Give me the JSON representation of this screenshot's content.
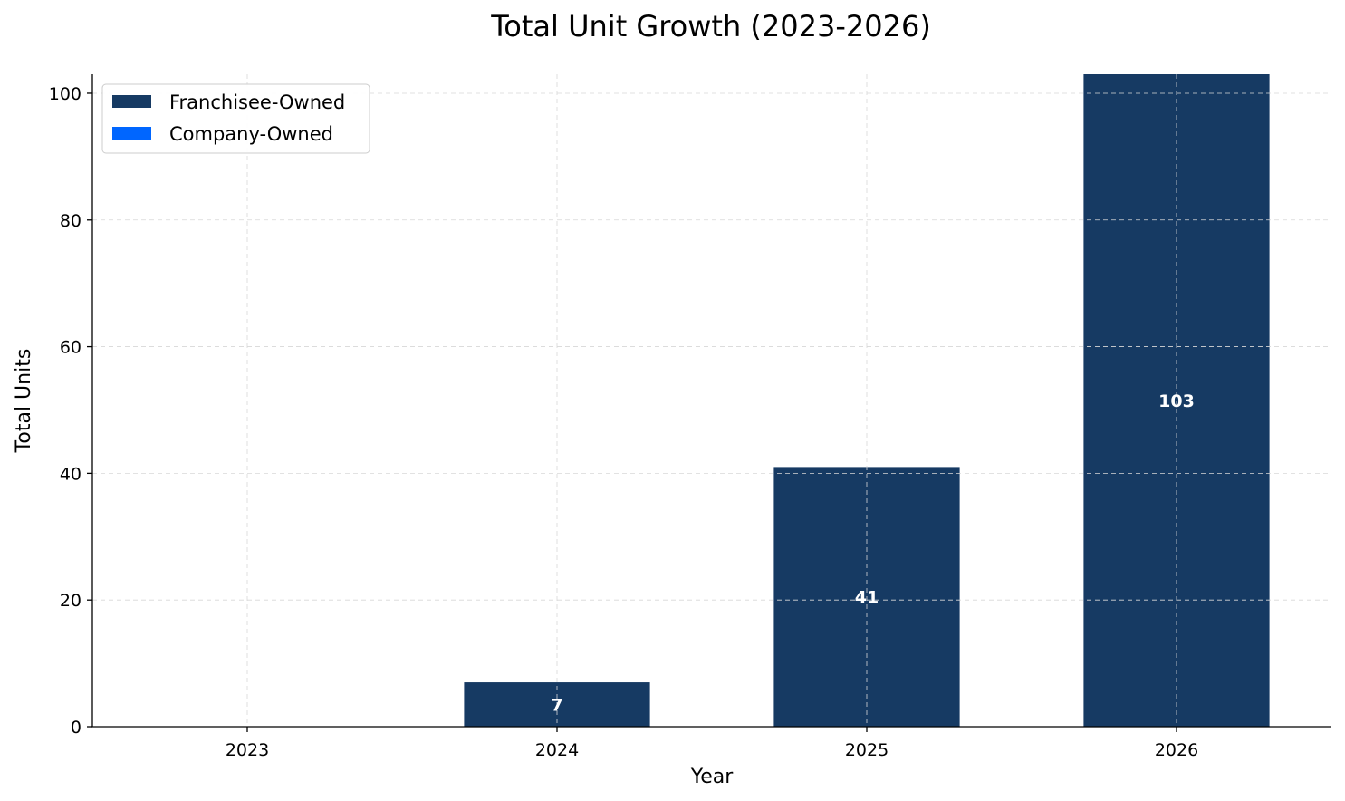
{
  "chart_data": {
    "type": "bar",
    "stacked": true,
    "title": "Total Unit Growth (2023-2026)",
    "xlabel": "Year",
    "ylabel": "Total Units",
    "categories": [
      "2023",
      "2024",
      "2025",
      "2026"
    ],
    "series": [
      {
        "name": "Franchisee-Owned",
        "values": [
          0,
          7,
          41,
          103
        ],
        "color": "#163a63"
      },
      {
        "name": "Company-Owned",
        "values": [
          0,
          0,
          0,
          0
        ],
        "color": "#0066ff"
      }
    ],
    "data_labels": [
      "",
      "7",
      "41",
      "103"
    ],
    "ylim": [
      0,
      103
    ],
    "yticks": [
      0,
      20,
      40,
      60,
      80,
      100
    ],
    "grid": true,
    "legend_position": "top-left"
  }
}
